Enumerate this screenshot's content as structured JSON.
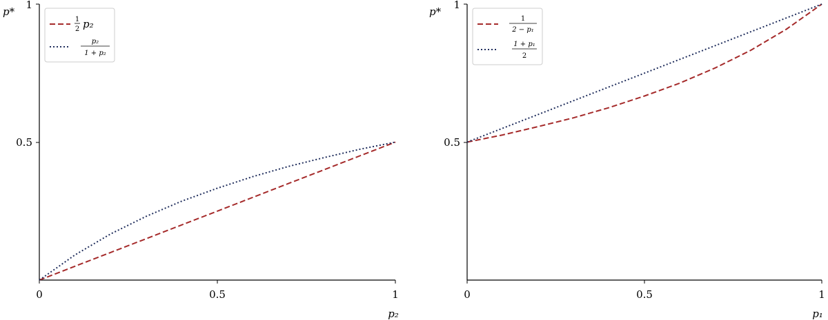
{
  "chart_data": [
    {
      "type": "line",
      "xlabel": "p₂",
      "ylabel": "p*",
      "xlim": [
        0,
        1
      ],
      "ylim": [
        0,
        1
      ],
      "xticks": [
        "0",
        "0.5",
        "1"
      ],
      "yticks": [
        "0.5",
        "1"
      ],
      "legend_position": "top-left",
      "grid": false,
      "series": [
        {
          "name": "½ p₂",
          "legend": {
            "frac_num": "1",
            "frac_den": "2",
            "suffix": "p₂"
          },
          "style": "dashed",
          "color": "#a52a2a",
          "x": [
            0,
            0.1,
            0.2,
            0.3,
            0.4,
            0.5,
            0.6,
            0.7,
            0.8,
            0.9,
            1.0
          ],
          "y": [
            0,
            0.05,
            0.1,
            0.15,
            0.2,
            0.25,
            0.3,
            0.35,
            0.4,
            0.45,
            0.5
          ]
        },
        {
          "name": "p₂ / (1+p₂)",
          "legend": {
            "frac_num": "p₂",
            "frac_den": "1 + p₂",
            "suffix": ""
          },
          "style": "dotted",
          "color": "#1f2d5c",
          "x": [
            0,
            0.1,
            0.2,
            0.3,
            0.4,
            0.5,
            0.6,
            0.7,
            0.8,
            0.9,
            1.0
          ],
          "y": [
            0,
            0.091,
            0.167,
            0.231,
            0.286,
            0.333,
            0.375,
            0.412,
            0.444,
            0.474,
            0.5
          ]
        }
      ]
    },
    {
      "type": "line",
      "xlabel": "p₁",
      "ylabel": "p*",
      "xlim": [
        0,
        1
      ],
      "ylim": [
        0,
        1
      ],
      "xticks": [
        "0",
        "0.5",
        "1"
      ],
      "yticks": [
        "0.5",
        "1"
      ],
      "legend_position": "top-left",
      "grid": false,
      "series": [
        {
          "name": "1 / (2−p₁)",
          "legend": {
            "frac_num": "1",
            "frac_den": "2 − p₁",
            "suffix": ""
          },
          "style": "dashed",
          "color": "#a52a2a",
          "x": [
            0,
            0.1,
            0.2,
            0.3,
            0.4,
            0.5,
            0.6,
            0.7,
            0.8,
            0.9,
            1.0
          ],
          "y": [
            0.5,
            0.526,
            0.556,
            0.588,
            0.625,
            0.667,
            0.714,
            0.769,
            0.833,
            0.909,
            1.0
          ]
        },
        {
          "name": "(1+p₁) / 2",
          "legend": {
            "frac_num": "1 + p₁",
            "frac_den": "2",
            "suffix": ""
          },
          "style": "dotted",
          "color": "#1f2d5c",
          "x": [
            0,
            0.1,
            0.2,
            0.3,
            0.4,
            0.5,
            0.6,
            0.7,
            0.8,
            0.9,
            1.0
          ],
          "y": [
            0.5,
            0.55,
            0.6,
            0.65,
            0.7,
            0.75,
            0.8,
            0.85,
            0.9,
            0.95,
            1.0
          ]
        }
      ]
    }
  ]
}
